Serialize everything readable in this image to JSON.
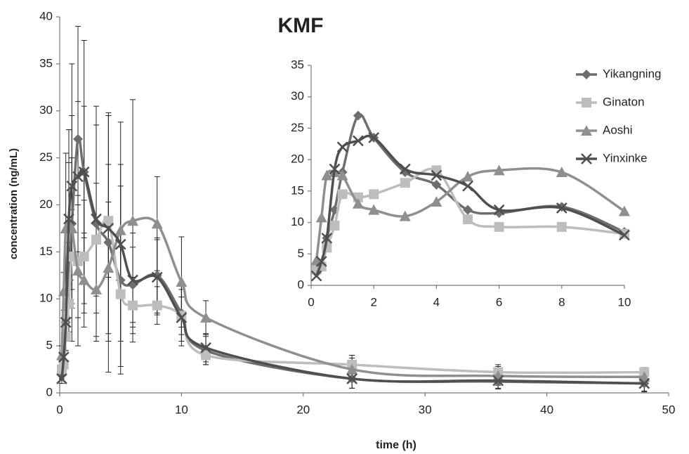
{
  "chart_data": [
    {
      "type": "line",
      "title": "KMF",
      "xlabel": "time (h)",
      "ylabel": "concentration (ng/mL)",
      "x": [
        0.17,
        0.33,
        0.5,
        0.75,
        1,
        1.5,
        2,
        3,
        4,
        5,
        6,
        8,
        10,
        12,
        24,
        36,
        48
      ],
      "xlim": [
        0,
        50
      ],
      "xticks": [
        0,
        10,
        20,
        30,
        40,
        50
      ],
      "ylim": [
        0,
        40
      ],
      "yticks": [
        0,
        5,
        10,
        15,
        20,
        25,
        30,
        35,
        40
      ],
      "series": [
        {
          "color": "#6e6e6e",
          "marker": "diamond",
          "values": [
            2,
            3,
            7.5,
            12,
            18,
            27,
            23.5,
            18,
            16,
            12,
            11.5,
            12.5,
            8.5,
            4.5,
            1.5,
            1.2,
            1.0
          ],
          "errors": [
            0.5,
            1,
            2,
            4,
            7,
            12,
            14,
            12.5,
            13.8,
            10,
            4,
            4,
            3,
            1.5,
            1,
            0.8,
            0.9
          ]
        },
        {
          "color": "#bdbdbd",
          "marker": "square",
          "values": [
            2.5,
            3,
            6,
            9.5,
            14.5,
            14,
            14.5,
            16.3,
            18.3,
            10.5,
            9.3,
            9.3,
            8.2,
            4,
            3,
            2.2,
            2.2
          ],
          "errors": [
            0.5,
            1,
            1.5,
            3,
            5,
            6,
            6,
            6,
            6,
            5,
            3,
            2,
            2,
            1,
            1,
            0.8,
            0.5
          ]
        },
        {
          "color": "#8f8f8f",
          "marker": "triangle",
          "values": [
            4,
            10.8,
            17.5,
            18,
            17.5,
            13,
            12,
            11,
            13.3,
            17.3,
            18.3,
            18,
            11.8,
            8,
            2.5,
            1.8,
            1.7
          ],
          "errors": [
            1,
            2,
            8,
            10,
            12,
            8,
            5,
            5,
            7,
            7,
            12.9,
            5,
            4.8,
            1.8,
            1.2,
            1,
            0.8
          ]
        },
        {
          "color": "#4f4f4f",
          "marker": "x",
          "values": [
            1.5,
            3.8,
            7.5,
            18.5,
            22,
            23,
            23.5,
            18.5,
            17.5,
            15.8,
            12,
            12.3,
            8,
            4.8,
            1.5,
            1.3,
            1.0
          ],
          "errors": [
            0.5,
            1,
            3,
            6,
            13,
            8,
            7,
            10,
            12,
            13,
            5,
            4,
            3,
            1.5,
            1,
            0.8,
            0.8
          ]
        }
      ]
    },
    {
      "type": "line",
      "legend": "right",
      "x": [
        0.17,
        0.33,
        0.5,
        0.75,
        1,
        1.5,
        2,
        3,
        4,
        5,
        6,
        8,
        10
      ],
      "xlim": [
        0,
        10
      ],
      "xticks": [
        0,
        2,
        4,
        6,
        8,
        10
      ],
      "ylim": [
        0,
        35
      ],
      "yticks": [
        0,
        5,
        10,
        15,
        20,
        25,
        30,
        35
      ],
      "series": [
        {
          "name": "Yikangning",
          "color": "#6e6e6e",
          "marker": "diamond",
          "values": [
            2,
            3,
            7.5,
            12,
            18,
            27,
            23.5,
            18,
            16,
            12,
            11.5,
            12.5,
            8.5
          ]
        },
        {
          "name": "Ginaton",
          "color": "#bdbdbd",
          "marker": "square",
          "values": [
            2.5,
            3,
            6,
            9.5,
            14.5,
            14,
            14.5,
            16.3,
            18.3,
            10.5,
            9.3,
            9.3,
            8.2
          ]
        },
        {
          "name": "Aoshi",
          "color": "#8f8f8f",
          "marker": "triangle",
          "values": [
            4,
            10.8,
            17.5,
            18,
            17.5,
            13,
            12,
            11,
            13.3,
            17.3,
            18.3,
            18,
            11.8
          ]
        },
        {
          "name": "Yinxinke",
          "color": "#4f4f4f",
          "marker": "x",
          "values": [
            1.5,
            3.8,
            7.5,
            18.5,
            22,
            23,
            23.5,
            18.5,
            17.5,
            15.8,
            12,
            12.3,
            8
          ]
        }
      ]
    }
  ]
}
